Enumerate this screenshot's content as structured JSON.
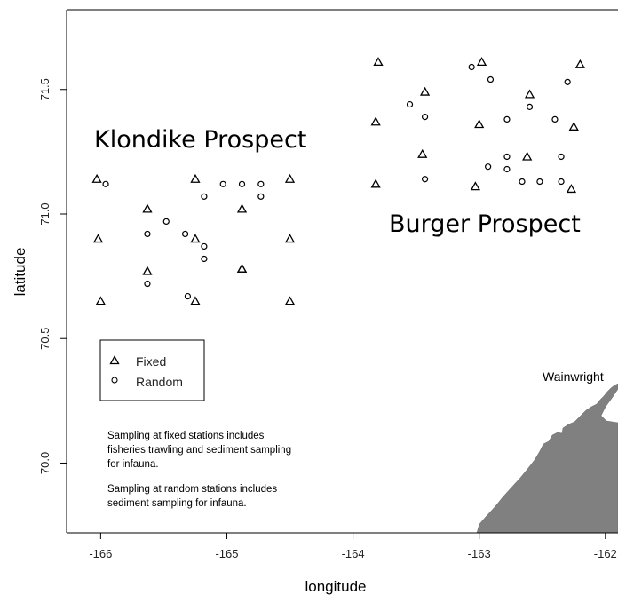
{
  "chart_data": {
    "type": "scatter",
    "xlabel": "longitude",
    "ylabel": "latitude",
    "xlim": [
      -166.27,
      -161.9
    ],
    "ylim": [
      69.72,
      71.82
    ],
    "xticks": [
      -166,
      -165,
      -164,
      -163,
      -162
    ],
    "yticks": [
      70.0,
      70.5,
      71.0,
      71.5
    ],
    "xtick_labels": [
      "-166",
      "-165",
      "-164",
      "-163",
      "-162"
    ],
    "ytick_labels": [
      "70.0",
      "70.5",
      "71.0",
      "71.5"
    ],
    "series": [
      {
        "name": "Fixed",
        "marker": "triangle",
        "points": [
          [
            -166.03,
            71.14
          ],
          [
            -166.02,
            70.9
          ],
          [
            -166.0,
            70.65
          ],
          [
            -165.63,
            71.02
          ],
          [
            -165.63,
            70.77
          ],
          [
            -165.25,
            71.14
          ],
          [
            -165.25,
            70.9
          ],
          [
            -165.25,
            70.65
          ],
          [
            -164.88,
            71.02
          ],
          [
            -164.88,
            70.78
          ],
          [
            -164.88,
            70.78
          ],
          [
            -164.5,
            71.14
          ],
          [
            -164.5,
            70.9
          ],
          [
            -164.5,
            70.65
          ],
          [
            -163.8,
            71.61
          ],
          [
            -163.82,
            71.37
          ],
          [
            -163.82,
            71.12
          ],
          [
            -163.43,
            71.49
          ],
          [
            -163.45,
            71.24
          ],
          [
            -162.98,
            71.61
          ],
          [
            -163.0,
            71.36
          ],
          [
            -163.03,
            71.11
          ],
          [
            -162.6,
            71.48
          ],
          [
            -162.62,
            71.23
          ],
          [
            -162.2,
            71.6
          ],
          [
            -162.25,
            71.35
          ],
          [
            -162.27,
            71.1
          ]
        ]
      },
      {
        "name": "Random",
        "marker": "circle",
        "points": [
          [
            -165.96,
            71.12
          ],
          [
            -165.63,
            70.92
          ],
          [
            -165.63,
            70.72
          ],
          [
            -165.48,
            70.97
          ],
          [
            -165.33,
            70.92
          ],
          [
            -165.31,
            70.67
          ],
          [
            -165.18,
            71.07
          ],
          [
            -165.18,
            70.87
          ],
          [
            -165.18,
            70.82
          ],
          [
            -165.03,
            71.12
          ],
          [
            -164.88,
            71.12
          ],
          [
            -164.73,
            71.12
          ],
          [
            -164.73,
            71.07
          ],
          [
            -163.55,
            71.44
          ],
          [
            -163.43,
            71.39
          ],
          [
            -163.43,
            71.14
          ],
          [
            -163.06,
            71.59
          ],
          [
            -162.91,
            71.54
          ],
          [
            -162.93,
            71.19
          ],
          [
            -162.78,
            71.38
          ],
          [
            -162.78,
            71.23
          ],
          [
            -162.78,
            71.18
          ],
          [
            -162.6,
            71.43
          ],
          [
            -162.66,
            71.13
          ],
          [
            -162.52,
            71.13
          ],
          [
            -162.4,
            71.38
          ],
          [
            -162.35,
            71.23
          ],
          [
            -162.35,
            71.13
          ],
          [
            -162.3,
            71.53
          ]
        ]
      }
    ],
    "annotations": [
      {
        "text": "Klondike Prospect",
        "x": -165.95,
        "y": 71.29
      },
      {
        "text": "Burger Prospect",
        "x": -163.88,
        "y": 70.95
      },
      {
        "text": "Wainwright",
        "x": -162.6,
        "y": 70.33
      }
    ],
    "legend": {
      "placement": "left",
      "entries": [
        "Fixed",
        "Random"
      ]
    },
    "land_color": "#808080"
  },
  "notes": {
    "fixed": [
      "Sampling at fixed stations includes",
      "fisheries trawling and sediment sampling",
      "for infauna."
    ],
    "random": [
      "Sampling at random stations includes",
      "sediment sampling for infauna."
    ]
  }
}
